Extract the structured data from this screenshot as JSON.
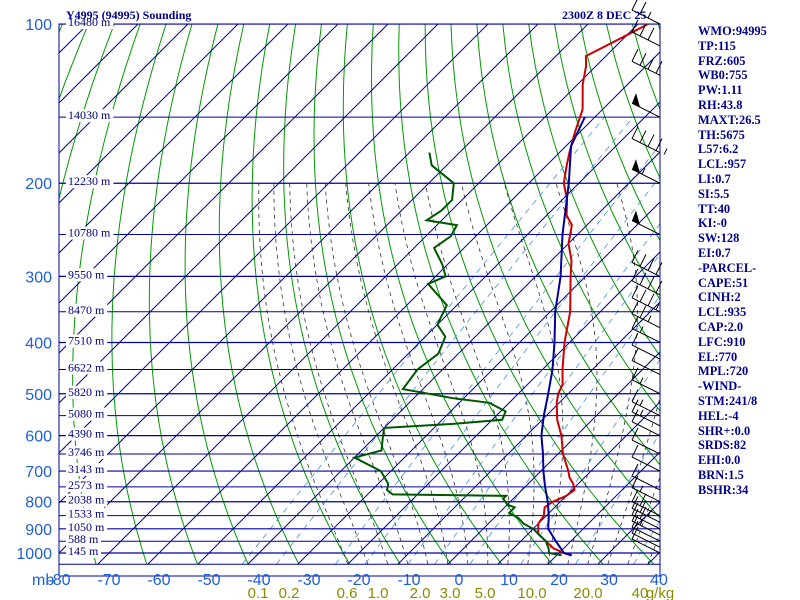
{
  "chart_data": {
    "type": "line",
    "title": "Y4995 (94995) Sounding",
    "valid_time": "2300Z  8 DEC 25",
    "xlim": [
      -80,
      40
    ],
    "ylim": [
      1000,
      100
    ],
    "pressure_ticks": [
      "100",
      "200",
      "300",
      "400",
      "500",
      "600",
      "700",
      "800",
      "900",
      "1000"
    ],
    "pressure_unit": "mb",
    "temperature_ticks": [
      "-80",
      "-70",
      "-60",
      "-50",
      "-40",
      "-30",
      "-20",
      "-10",
      "0",
      "10",
      "20",
      "30",
      "40"
    ],
    "mixing_ratio_ticks": [
      "0.1",
      "0.2",
      "0.6",
      "1.0",
      "2.0",
      "3.0",
      "5.0",
      "10.0",
      "20.0",
      "40",
      "g/kg"
    ],
    "height_labels": [
      {
        "p": 100,
        "label": "16480 m"
      },
      {
        "p": 150,
        "label": "14030 m"
      },
      {
        "p": 200,
        "label": "12230 m"
      },
      {
        "p": 250,
        "label": "10780 m"
      },
      {
        "p": 300,
        "label": "9550 m"
      },
      {
        "p": 350,
        "label": "8470 m"
      },
      {
        "p": 400,
        "label": "7510 m"
      },
      {
        "p": 450,
        "label": "6622 m"
      },
      {
        "p": 500,
        "label": "5820 m"
      },
      {
        "p": 550,
        "label": "5080 m"
      },
      {
        "p": 600,
        "label": "4390 m"
      },
      {
        "p": 650,
        "label": "3746 m"
      },
      {
        "p": 700,
        "label": "3143 m"
      },
      {
        "p": 750,
        "label": "2573 m"
      },
      {
        "p": 800,
        "label": "2038 m"
      },
      {
        "p": 850,
        "label": "1533 m"
      },
      {
        "p": 900,
        "label": "1050 m"
      },
      {
        "p": 950,
        "label": "588 m"
      },
      {
        "p": 1000,
        "label": "145 m"
      }
    ],
    "series": [
      {
        "key": "temperature",
        "color": "#cc0000",
        "points": [
          [
            1010,
            23
          ],
          [
            1000,
            21
          ],
          [
            980,
            18
          ],
          [
            950,
            15
          ],
          [
            920,
            12
          ],
          [
            900,
            11
          ],
          [
            880,
            10
          ],
          [
            850,
            9.5
          ],
          [
            820,
            8
          ],
          [
            800,
            8.5
          ],
          [
            780,
            10
          ],
          [
            760,
            10.5
          ],
          [
            740,
            9
          ],
          [
            720,
            7
          ],
          [
            700,
            5.5
          ],
          [
            650,
            1
          ],
          [
            600,
            -3
          ],
          [
            560,
            -7
          ],
          [
            520,
            -10.5
          ],
          [
            500,
            -12
          ],
          [
            480,
            -13
          ],
          [
            450,
            -16
          ],
          [
            400,
            -21
          ],
          [
            350,
            -26
          ],
          [
            300,
            -33
          ],
          [
            280,
            -36
          ],
          [
            260,
            -40
          ],
          [
            240,
            -43
          ],
          [
            230,
            -46
          ],
          [
            215,
            -49
          ],
          [
            200,
            -53
          ],
          [
            185,
            -56
          ],
          [
            175,
            -58
          ],
          [
            160,
            -61
          ],
          [
            145,
            -64
          ],
          [
            130,
            -69
          ],
          [
            120,
            -72
          ],
          [
            115,
            -74
          ],
          [
            105,
            -70
          ],
          [
            100,
            -68
          ]
        ]
      },
      {
        "key": "dewpoint",
        "color": "#005500",
        "points": [
          [
            1010,
            21
          ],
          [
            1000,
            18
          ],
          [
            980,
            17
          ],
          [
            950,
            15
          ],
          [
            920,
            12
          ],
          [
            900,
            10
          ],
          [
            880,
            7
          ],
          [
            860,
            5
          ],
          [
            840,
            2
          ],
          [
            820,
            2
          ],
          [
            810,
            0
          ],
          [
            800,
            -1
          ],
          [
            790,
            -2
          ],
          [
            780,
            -2
          ],
          [
            775,
            -25
          ],
          [
            760,
            -27
          ],
          [
            740,
            -28
          ],
          [
            700,
            -32
          ],
          [
            660,
            -40
          ],
          [
            640,
            -36
          ],
          [
            610,
            -38
          ],
          [
            580,
            -40
          ],
          [
            570,
            -27
          ],
          [
            560,
            -18
          ],
          [
            540,
            -19
          ],
          [
            520,
            -24
          ],
          [
            510,
            -32
          ],
          [
            490,
            -44
          ],
          [
            450,
            -45
          ],
          [
            420,
            -44
          ],
          [
            390,
            -46
          ],
          [
            370,
            -50
          ],
          [
            340,
            -52
          ],
          [
            310,
            -60
          ],
          [
            300,
            -58
          ],
          [
            285,
            -61
          ],
          [
            265,
            -66
          ],
          [
            252,
            -65
          ],
          [
            240,
            -66
          ],
          [
            235,
            -73
          ],
          [
            225,
            -72
          ],
          [
            215,
            -72
          ],
          [
            200,
            -75
          ],
          [
            185,
            -83
          ],
          [
            175,
            -86
          ]
        ]
      },
      {
        "key": "parcel",
        "color": "#000099",
        "points": [
          [
            1010,
            23
          ],
          [
            1000,
            21
          ],
          [
            950,
            17
          ],
          [
            900,
            13
          ],
          [
            850,
            10.5
          ],
          [
            800,
            7.5
          ],
          [
            750,
            4
          ],
          [
            700,
            0.5
          ],
          [
            650,
            -3
          ],
          [
            600,
            -7
          ],
          [
            550,
            -10.5
          ],
          [
            500,
            -14
          ],
          [
            450,
            -18
          ],
          [
            400,
            -23
          ],
          [
            350,
            -29
          ],
          [
            300,
            -35
          ],
          [
            250,
            -43
          ],
          [
            200,
            -52
          ],
          [
            170,
            -59
          ],
          [
            150,
            -62
          ]
        ]
      }
    ],
    "wind_barbs": [
      {
        "p": 1000,
        "speed_kt": 10
      },
      {
        "p": 975,
        "speed_kt": 10
      },
      {
        "p": 950,
        "speed_kt": 10
      },
      {
        "p": 925,
        "speed_kt": 15
      },
      {
        "p": 900,
        "speed_kt": 20
      },
      {
        "p": 875,
        "speed_kt": 25
      },
      {
        "p": 850,
        "speed_kt": 20
      },
      {
        "p": 800,
        "speed_kt": 15
      },
      {
        "p": 760,
        "speed_kt": 10
      },
      {
        "p": 700,
        "speed_kt": 10
      },
      {
        "p": 650,
        "speed_kt": 10
      },
      {
        "p": 600,
        "speed_kt": 10
      },
      {
        "p": 575,
        "speed_kt": 15
      },
      {
        "p": 550,
        "speed_kt": 15
      },
      {
        "p": 500,
        "speed_kt": 15
      },
      {
        "p": 460,
        "speed_kt": 10
      },
      {
        "p": 430,
        "speed_kt": 10
      },
      {
        "p": 400,
        "speed_kt": 15
      },
      {
        "p": 375,
        "speed_kt": 25
      },
      {
        "p": 350,
        "speed_kt": 35
      },
      {
        "p": 325,
        "speed_kt": 40
      },
      {
        "p": 300,
        "speed_kt": 40
      },
      {
        "p": 250,
        "speed_kt": 50
      },
      {
        "p": 200,
        "speed_kt": 55
      },
      {
        "p": 175,
        "speed_kt": 45
      },
      {
        "p": 150,
        "speed_kt": 50
      },
      {
        "p": 125,
        "speed_kt": 40
      },
      {
        "p": 110,
        "speed_kt": 30
      },
      {
        "p": 100,
        "speed_kt": 25
      }
    ],
    "grid": true
  },
  "panel": [
    "WMO:94995",
    "TP:115",
    "FRZ:605",
    "WB0:755",
    "PW:1.11",
    "RH:43.8",
    "MAXT:26.5",
    "TH:5675",
    "L57:6.2",
    "LCL:957",
    "LI:0.7",
    "SI:5.5",
    "TT:40",
    "KI:-0",
    "SW:128",
    "EI:0.7",
    "-PARCEL-",
    "CAPE:51",
    "CINH:2",
    "LCL:935",
    "CAP:2.0",
    "LFC:910",
    "EL:770",
    "MPL:720",
    "-WIND-",
    "STM:241/8",
    "HEL:-4",
    "SHR+:0.0",
    "SRDS:82",
    "EHI:0.0",
    "BRN:1.5",
    "BSHR:34"
  ],
  "colors": {
    "isobar": "#0000a0",
    "isotherm": "#0000a0",
    "dry_adiabat": "#009900",
    "moist_adiabat": "#333333",
    "mixing_ratio": "#4a90e2",
    "temperature": "#cc0000",
    "dewpoint": "#005500",
    "parcel": "#000099",
    "tick_text": "#1f5fd6",
    "wmr_text": "#8b8b00"
  }
}
